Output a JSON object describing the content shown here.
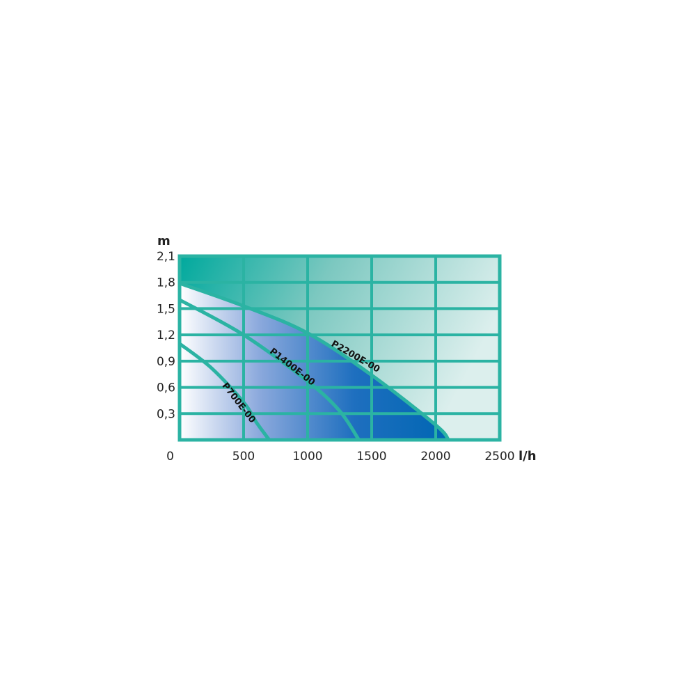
{
  "chart_data": {
    "type": "area",
    "title": "",
    "xlabel": "l/h",
    "ylabel": "m",
    "xlim": [
      0,
      2500
    ],
    "ylim": [
      0,
      2.1
    ],
    "x_ticks": [
      "0",
      "500",
      "1000",
      "1500",
      "2000",
      "2500"
    ],
    "y_ticks": [
      "0,3",
      "0,6",
      "0,9",
      "1,2",
      "1,5",
      "1,8",
      "2,1"
    ],
    "grid": true,
    "series": [
      {
        "name": "P2200E-00",
        "x": [
          0,
          500,
          1000,
          1500,
          2000,
          2100
        ],
        "y": [
          1.79,
          1.53,
          1.22,
          0.74,
          0.17,
          0
        ]
      },
      {
        "name": "P1400E-00",
        "x": [
          0,
          500,
          1000,
          1250,
          1400
        ],
        "y": [
          1.6,
          1.2,
          0.67,
          0.33,
          0
        ]
      },
      {
        "name": "P700E-00",
        "x": [
          0,
          250,
          500,
          600,
          700
        ],
        "y": [
          1.1,
          0.82,
          0.43,
          0.2,
          0
        ]
      }
    ],
    "colors": {
      "frame": "#2bb3a3",
      "background_dark": "#00a99d",
      "background_light": "#dcefed",
      "area_light": "#ffffff",
      "area_dark": "#0066b3"
    }
  }
}
